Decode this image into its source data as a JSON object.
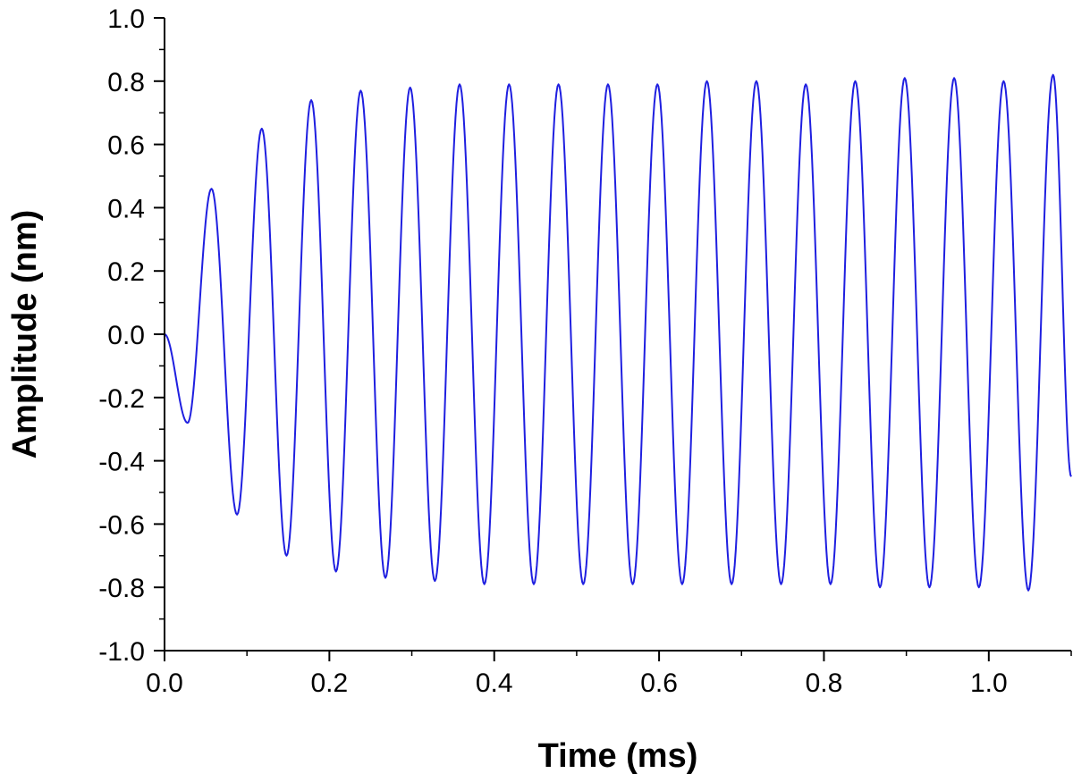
{
  "chart_data": {
    "type": "line",
    "title": "",
    "xlabel": "Time (ms)",
    "ylabel": "Amplitude (nm)",
    "xlim": [
      0,
      1.1
    ],
    "ylim": [
      -1.0,
      1.0
    ],
    "x_ticks": [
      0.0,
      0.2,
      0.4,
      0.6,
      0.8,
      1.0
    ],
    "x_tick_labels": [
      "0.0",
      "0.2",
      "0.4",
      "0.6",
      "0.8",
      "1.0"
    ],
    "y_ticks": [
      1.0,
      0.8,
      0.6,
      0.4,
      0.2,
      0.0,
      -0.2,
      -0.4,
      -0.6,
      -0.8,
      -1.0
    ],
    "y_tick_labels": [
      "1.0",
      "0.8",
      "0.6",
      "0.4",
      "0.2",
      "0.0",
      "-0.2",
      "-0.4",
      "-0.6",
      "-0.8",
      "-1.0"
    ],
    "grid": false,
    "legend": "none",
    "series": [
      {
        "color": "#1f1fe0",
        "x": [
          0,
          0.028,
          0.057,
          0.088,
          0.118,
          0.148,
          0.178,
          0.208,
          0.238,
          0.268,
          0.298,
          0.328,
          0.358,
          0.388,
          0.418,
          0.448,
          0.478,
          0.508,
          0.538,
          0.568,
          0.598,
          0.628,
          0.658,
          0.688,
          0.718,
          0.748,
          0.778,
          0.808,
          0.838,
          0.868,
          0.898,
          0.928,
          0.958,
          0.988,
          1.018,
          1.048,
          1.078,
          1.1
        ],
        "y": [
          0,
          -0.28,
          0.46,
          -0.57,
          0.65,
          -0.7,
          0.74,
          -0.75,
          0.77,
          -0.77,
          0.78,
          -0.78,
          0.79,
          -0.79,
          0.79,
          -0.79,
          0.79,
          -0.79,
          0.79,
          -0.79,
          0.79,
          -0.79,
          0.8,
          -0.79,
          0.8,
          -0.79,
          0.79,
          -0.79,
          0.8,
          -0.8,
          0.81,
          -0.8,
          0.81,
          -0.8,
          0.8,
          -0.81,
          0.82,
          -0.45
        ]
      }
    ]
  }
}
